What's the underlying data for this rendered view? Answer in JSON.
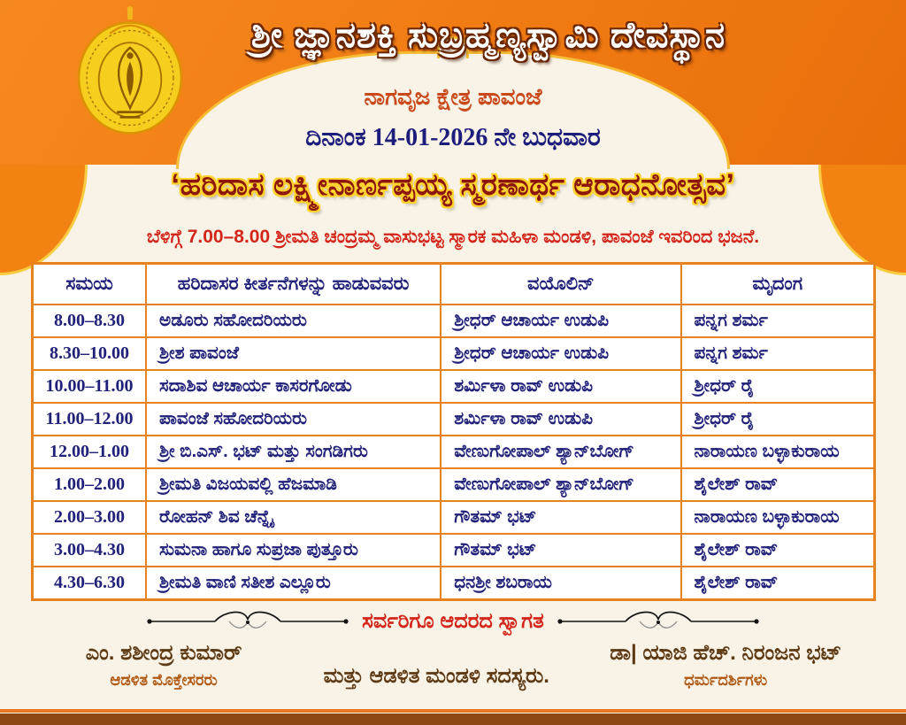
{
  "header": {
    "temple_name": "ಶ್ರೀ ಜ್ಞಾನಶಕ್ತಿ ಸುಬ್ರಹ್ಮಣ್ಯಸ್ವಾಮಿ ದೇವಸ್ಥಾನ",
    "place_line": "ನಾಗವೃಜ ಕ್ಷೇತ್ರ ಪಾವಂಜೆ",
    "date_line": "ದಿನಾಂಕ 14-01-2026 ನೇ ಬುಧವಾರ",
    "logo_icon": "temple-emblem-peacock"
  },
  "event": {
    "title": "‘ಹರಿದಾಸ ಲಕ್ಷ್ಮೀನಾರ್ಣಪ್ಪಯ್ಯ ಸ್ಮರಣಾರ್ಥ ಆರಾಧನೋತ್ಸವ’",
    "morning_note": "ಬೆಳಿಗ್ಗೆ 7.00–8.00 ಶ್ರೀಮತಿ ಚಂದ್ರಮ್ಮ ವಾಸುಭಟ್ಟ ಸ್ಮಾರಕ ಮಹಿಳಾ ಮಂಡಳಿ, ಪಾವಂಜೆ ಇವರಿಂದ ಭಜನೆ."
  },
  "schedule": {
    "columns": [
      "ಸಮಯ",
      "ಹರಿದಾಸರ ಕೀರ್ತನೆಗಳನ್ನು ಹಾಡುವವರು",
      "ವಯೊಲಿನ್",
      "ಮೃದಂಗ"
    ],
    "rows": [
      [
        "8.00–8.30",
        "ಅಡೂರು ಸಹೋದರಿಯರು",
        "ಶ್ರೀಧರ್ ಆಚಾರ್ಯ ಉಡುಪಿ",
        "ಪನ್ನಗ ಶರ್ಮ"
      ],
      [
        "8.30–10.00",
        "ಶ್ರೀಶ ಪಾವಂಜೆ",
        "ಶ್ರೀಧರ್ ಆಚಾರ್ಯ ಉಡುಪಿ",
        "ಪನ್ನಗ ಶರ್ಮ"
      ],
      [
        "10.00–11.00",
        "ಸದಾಶಿವ ಆಚಾರ್ಯ ಕಾಸರಗೋಡು",
        "ಶರ್ಮಿಳಾ ರಾವ್ ಉಡುಪಿ",
        "ಶ್ರೀಧರ್ ರೈ"
      ],
      [
        "11.00–12.00",
        "ಪಾವಂಜೆ ಸಹೋದರಿಯರು",
        "ಶರ್ಮಿಳಾ ರಾವ್ ಉಡುಪಿ",
        "ಶ್ರೀಧರ್ ರೈ"
      ],
      [
        "12.00–1.00",
        "ಶ್ರೀ ಬಿ.ಎಸ್. ಭಟ್ ಮತ್ತು ಸಂಗಡಿಗರು",
        "ವೇಣುಗೋಪಾಲ್ ಶ್ಯಾನ್‌ಬೋಗ್",
        "ನಾರಾಯಣ ಬಳ್ಳಾಕುರಾಯ"
      ],
      [
        "1.00–2.00",
        "ಶ್ರೀಮತಿ ವಿಜಯವಲ್ಲಿ ಹೆಜಮಾಡಿ",
        "ವೇಣುಗೋಪಾಲ್ ಶ್ಯಾನ್‌ಬೋಗ್",
        "ಶೈಲೇಶ್ ರಾವ್"
      ],
      [
        "2.00–3.00",
        "ರೋಹನ್ ಶಿವ ಚೆನ್ನೈ",
        "ಗೌತಮ್ ಭಟ್",
        "ನಾರಾಯಣ ಬಳ್ಳಾಕುರಾಯ"
      ],
      [
        "3.00–4.30",
        "ಸುಮನಾ ಹಾಗೂ ಸುಪ್ರಜಾ ಪುತ್ತೂರು",
        "ಗೌತಮ್ ಭಟ್",
        "ಶೈಲೇಶ್ ರಾವ್"
      ],
      [
        "4.30–6.30",
        "ಶ್ರೀಮತಿ ವಾಣಿ ಸತೀಶ ಎಲ್ಲೂರು",
        "ಧನಶ್ರೀ ಶಬರಾಯ",
        "ಶೈಲೇಶ್ ರಾವ್"
      ]
    ]
  },
  "footer": {
    "welcome": "ಸರ್ವರಿಗೂ ಆದರದ ಸ್ವಾಗತ",
    "left_name": "ಎಂ. ಶಶೀಂದ್ರ ಕುಮಾರ್",
    "left_role": "ಆಡಳಿತ ಮೊಕ್ತೇಸರರು",
    "center_text": "ಮತ್ತು ಆಡಳಿತ ಮಂಡಳಿ ಸದಸ್ಯರು.",
    "right_name": "ಡಾ| ಯಾಜಿ ಹೆಚ್. ನಿರಂಜನ ಭಟ್",
    "right_role": "ಧರ್ಮದರ್ಶಿಗಳು"
  },
  "colors": {
    "band_orange": "#F07A12",
    "cream": "#F8F3E6",
    "table_border_orange": "#E8821E",
    "text_navy": "#21217A",
    "text_red": "#D3251A",
    "title_maroon": "#8C150C",
    "title_outline_yellow": "#FFD22E",
    "footer_brown": "#5E3A14",
    "footer_light_brown": "#B05A17",
    "bottom_bar_brown": "#8C4A12"
  }
}
